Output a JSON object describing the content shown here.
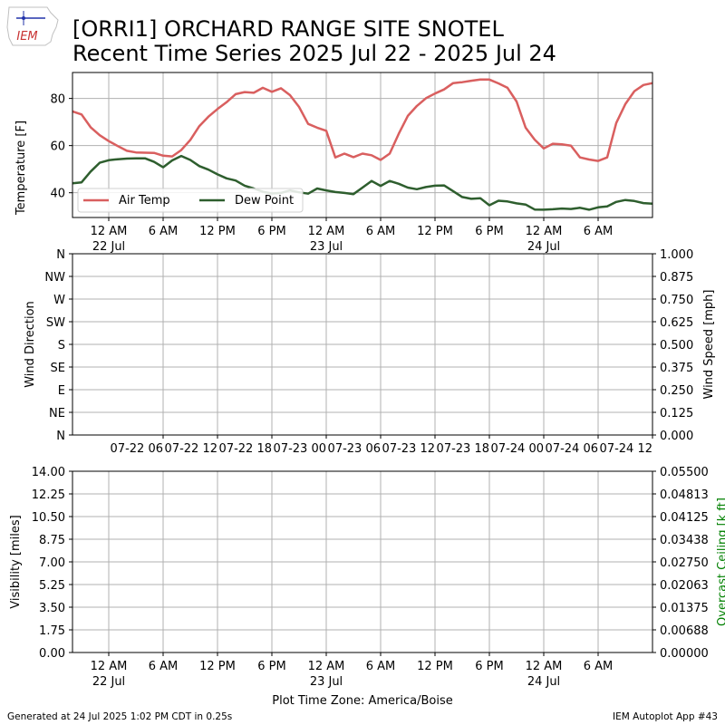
{
  "header": {
    "logo_text": "IEM",
    "title_line1": "[ORRI1] ORCHARD RANGE SITE SNOTEL",
    "title_line2": "Recent Time Series 2025 Jul 22 - 2025 Jul 24"
  },
  "footer": {
    "generated": "Generated at 24 Jul 2025 1:02 PM CDT in 0.25s",
    "app": "IEM Autoplot App #43"
  },
  "colors": {
    "air_temp": "#d95f5f",
    "dew_point": "#2e5e2e",
    "ceiling_label": "#008000",
    "grid": "#b0b0b0"
  },
  "time_axis": {
    "start_hour": 0,
    "end_hour": 64,
    "tick_hours": [
      4,
      10,
      16,
      22,
      28,
      34,
      40,
      46,
      52,
      58
    ],
    "tick_labels": [
      "12 AM",
      "6 AM",
      "12 PM",
      "6 PM",
      "12 AM",
      "6 AM",
      "12 PM",
      "6 PM",
      "12 AM",
      "6 AM"
    ],
    "day_labels": [
      {
        "hour": 4,
        "label": "22 Jul"
      },
      {
        "hour": 28,
        "label": "23 Jul"
      },
      {
        "hour": 52,
        "label": "24 Jul"
      }
    ],
    "wind_tick_labels": [
      "07-22 06",
      "07-22 12",
      "07-22 18",
      "07-23 00",
      "07-23 06",
      "07-23 12",
      "07-23 18",
      "07-24 00",
      "07-24 06",
      "07-24 12"
    ],
    "wind_tick_hours": [
      10,
      16,
      22,
      28,
      34,
      40,
      46,
      52,
      58,
      64
    ],
    "xlabel": "Plot Time Zone: America/Boise"
  },
  "chart_data": [
    {
      "type": "line",
      "ylabel": "Temperature [F]",
      "ylim": [
        29.5,
        91
      ],
      "yticks": [
        40,
        60,
        80
      ],
      "grid": true,
      "legend": "lower-left",
      "series": [
        {
          "name": "Air Temp",
          "x": [
            0,
            1,
            2,
            3,
            4,
            5,
            6,
            7,
            8,
            9,
            10,
            11,
            12,
            13,
            14,
            15,
            16,
            17,
            18,
            19,
            20,
            21,
            22,
            23,
            24,
            25,
            26,
            27,
            28,
            29,
            30,
            31,
            32,
            33,
            34,
            35,
            36,
            37,
            38,
            39,
            40,
            41,
            42,
            43,
            44,
            45,
            46,
            47,
            48,
            49,
            50,
            51,
            52,
            53,
            54,
            55,
            56,
            57,
            58,
            59,
            60,
            61,
            62,
            63,
            64
          ],
          "values": [
            74.5,
            73.2,
            67.8,
            64.4,
            61.9,
            59.8,
            57.8,
            57.1,
            57.0,
            56.9,
            55.7,
            55.4,
            58.1,
            62.4,
            68.3,
            72.3,
            75.5,
            78.4,
            81.8,
            82.7,
            82.4,
            84.5,
            82.8,
            84.3,
            81.4,
            76.4,
            69.2,
            67.6,
            66.3,
            55.0,
            56.6,
            55.1,
            56.6,
            55.9,
            53.9,
            56.6,
            65.0,
            72.6,
            76.8,
            80.1,
            82.1,
            83.8,
            86.5,
            86.9,
            87.5,
            88.0,
            88.0,
            86.4,
            84.5,
            78.7,
            67.6,
            62.5,
            58.8,
            60.8,
            60.5,
            60.0,
            55.0,
            54.1,
            53.5,
            55.0,
            69.6,
            77.6,
            83.1,
            85.7,
            86.5
          ]
        },
        {
          "name": "Dew Point",
          "x": [
            0,
            1,
            2,
            3,
            4,
            5,
            6,
            7,
            8,
            9,
            10,
            11,
            12,
            13,
            14,
            15,
            16,
            17,
            18,
            19,
            20,
            21,
            22,
            23,
            24,
            25,
            26,
            27,
            28,
            29,
            30,
            31,
            32,
            33,
            34,
            35,
            36,
            37,
            38,
            39,
            40,
            41,
            42,
            43,
            44,
            45,
            46,
            47,
            48,
            49,
            50,
            51,
            52,
            53,
            54,
            55,
            56,
            57,
            58,
            59,
            60,
            61,
            62,
            63,
            64
          ],
          "values": [
            44.0,
            44.4,
            49.0,
            52.7,
            53.8,
            54.2,
            54.5,
            54.6,
            54.6,
            53.1,
            50.8,
            53.7,
            55.6,
            53.9,
            51.3,
            49.8,
            47.8,
            46.1,
            45.2,
            43.0,
            41.8,
            40.4,
            39.7,
            39.9,
            41.0,
            40.2,
            39.6,
            41.8,
            41.0,
            40.3,
            39.9,
            39.4,
            42.2,
            45.0,
            42.9,
            45.0,
            43.8,
            42.2,
            41.5,
            42.4,
            43.0,
            43.1,
            40.7,
            38.2,
            37.4,
            37.7,
            34.7,
            36.6,
            36.3,
            35.5,
            35.0,
            32.9,
            32.8,
            33.0,
            33.3,
            33.1,
            33.6,
            32.8,
            33.8,
            34.2,
            36.1,
            36.9,
            36.5,
            35.6,
            35.4
          ]
        }
      ]
    },
    {
      "type": "line",
      "ylabel": "Wind Direction",
      "ylabel_right": "Wind Speed [mph]",
      "ytick_labels": [
        "N",
        "NE",
        "E",
        "SE",
        "S",
        "SW",
        "W",
        "NW",
        "N"
      ],
      "yticks_right": [
        "0.000",
        "0.125",
        "0.250",
        "0.375",
        "0.500",
        "0.625",
        "0.750",
        "0.875",
        "1.000"
      ],
      "grid": true,
      "series": []
    },
    {
      "type": "line",
      "ylabel": "Visibility [miles]",
      "ylabel_right": "Overcast Ceiling [k ft]",
      "yticks": [
        "0.00",
        "1.75",
        "3.50",
        "5.25",
        "7.00",
        "8.75",
        "10.50",
        "12.25",
        "14.00"
      ],
      "yticks_right": [
        "0.00000",
        "0.00688",
        "0.01375",
        "0.02063",
        "0.02750",
        "0.03438",
        "0.04125",
        "0.04813",
        "0.05500"
      ],
      "grid": true,
      "series": []
    }
  ]
}
